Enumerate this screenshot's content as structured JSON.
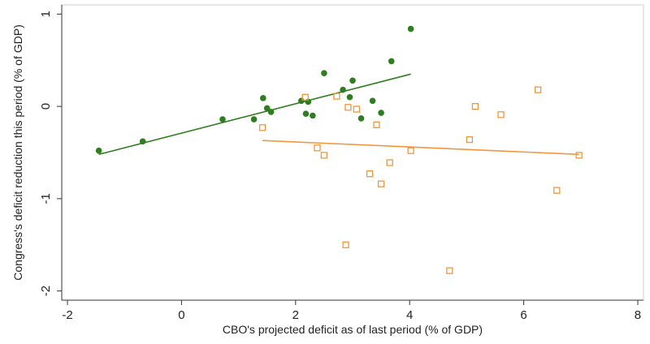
{
  "chart_data": {
    "type": "scatter",
    "title": "",
    "xlabel": "CBO's projected deficit as of last period (% of GDP)",
    "ylabel": "Congress's deficit reduction this period (% of GDP)",
    "xlim": [
      -2.1,
      8.1
    ],
    "ylim": [
      -2.1,
      1.1
    ],
    "x_ticks": [
      -2,
      0,
      2,
      4,
      6,
      8
    ],
    "y_ticks": [
      -2,
      -1,
      0,
      1
    ],
    "grid": false,
    "legend": "none",
    "series": [
      {
        "marker": "filled-circle",
        "color": "#2e7d1f",
        "points": [
          [
            -1.45,
            -0.48
          ],
          [
            -0.68,
            -0.38
          ],
          [
            0.72,
            -0.14
          ],
          [
            1.27,
            -0.14
          ],
          [
            1.43,
            0.09
          ],
          [
            1.5,
            -0.02
          ],
          [
            1.57,
            -0.06
          ],
          [
            2.1,
            0.06
          ],
          [
            2.18,
            -0.08
          ],
          [
            2.22,
            0.05
          ],
          [
            2.3,
            -0.1
          ],
          [
            2.5,
            0.36
          ],
          [
            2.83,
            0.18
          ],
          [
            2.95,
            0.1
          ],
          [
            3.0,
            0.28
          ],
          [
            3.15,
            -0.13
          ],
          [
            3.35,
            0.06
          ],
          [
            3.5,
            -0.07
          ],
          [
            3.68,
            0.49
          ],
          [
            4.02,
            0.84
          ]
        ],
        "fit_line": {
          "x": [
            -1.45,
            4.02
          ],
          "y": [
            -0.52,
            0.35
          ]
        }
      },
      {
        "marker": "open-square",
        "color": "#f0963c",
        "points": [
          [
            1.42,
            -0.23
          ],
          [
            2.17,
            0.1
          ],
          [
            2.38,
            -0.45
          ],
          [
            2.5,
            -0.53
          ],
          [
            2.72,
            0.11
          ],
          [
            2.88,
            -1.5
          ],
          [
            2.92,
            -0.01
          ],
          [
            3.07,
            -0.03
          ],
          [
            3.3,
            -0.73
          ],
          [
            3.42,
            -0.2
          ],
          [
            3.5,
            -0.84
          ],
          [
            3.65,
            -0.61
          ],
          [
            4.02,
            -0.48
          ],
          [
            4.7,
            -1.78
          ],
          [
            5.05,
            -0.36
          ],
          [
            5.15,
            0.0
          ],
          [
            5.6,
            -0.09
          ],
          [
            6.25,
            0.18
          ],
          [
            6.58,
            -0.91
          ],
          [
            6.97,
            -0.53
          ]
        ],
        "fit_line": {
          "x": [
            1.42,
            6.97
          ],
          "y": [
            -0.37,
            -0.52
          ]
        }
      }
    ]
  }
}
